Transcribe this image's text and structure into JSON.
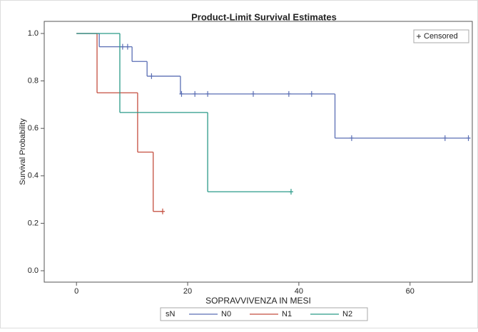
{
  "chart_data": {
    "type": "survival",
    "title": "Product-Limit Survival Estimates",
    "x_label": "SOPRAVVIVENZA IN MESI",
    "y_label": "Survival Probability",
    "xlim": [
      -5.8,
      71.2
    ],
    "ylim": [
      -0.048,
      1.051
    ],
    "xticks": [
      0,
      20,
      40,
      60
    ],
    "yticks": [
      {
        "value": 0,
        "label": "0.0"
      },
      0.2,
      0.4,
      0.6,
      0.8,
      {
        "value": 1,
        "label": "1.0"
      }
    ],
    "legend_title": "sN",
    "censored_label": "Censored",
    "series": [
      {
        "name": "N0",
        "color": "#5a6eb4",
        "x": [
          0,
          4.1,
          10,
          12.7,
          18.7,
          46.5,
          70.8
        ],
        "values": [
          1,
          0.944,
          0.882,
          0.82,
          0.745,
          0.559,
          0.559
        ],
        "censored": {
          "x": [
            8.3,
            9.2,
            13.5,
            18.9,
            21.3,
            23.6,
            31.8,
            38.2,
            42.3,
            49.5,
            66.3,
            70.5
          ],
          "values": [
            0.944,
            0.944,
            0.82,
            0.745,
            0.745,
            0.745,
            0.745,
            0.745,
            0.745,
            0.559,
            0.559,
            0.559
          ]
        }
      },
      {
        "name": "N1",
        "color": "#c44e3f",
        "x": [
          0,
          3.7,
          11,
          13.8,
          15.5
        ],
        "values": [
          1,
          0.75,
          0.5,
          0.25,
          0.25
        ],
        "censored": {
          "x": [
            15.5
          ],
          "values": [
            0.25
          ]
        }
      },
      {
        "name": "N2",
        "color": "#2a9a88",
        "x": [
          0,
          7.8,
          23.6,
          38.6
        ],
        "values": [
          1,
          0.667,
          0.333,
          0.333
        ],
        "censored": {
          "x": [
            38.6
          ],
          "values": [
            0.333
          ]
        }
      }
    ]
  }
}
